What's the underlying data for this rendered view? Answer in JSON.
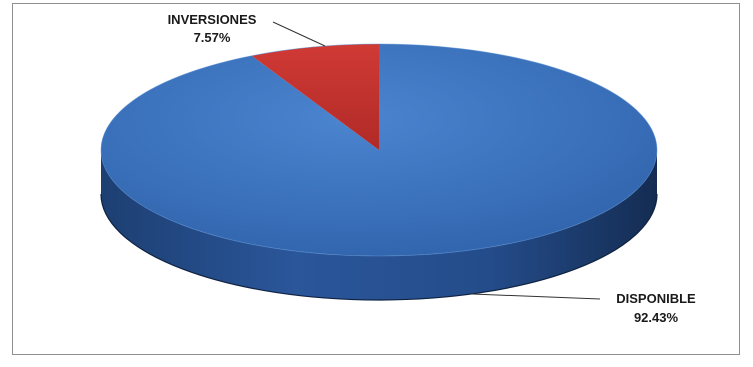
{
  "chart_data": {
    "type": "pie",
    "style": "3d",
    "slices": [
      {
        "label": "DISPONIBLE",
        "value": 92.43,
        "value_label": "92.43%",
        "color": "#3a72bd"
      },
      {
        "label": "INVERSIONES",
        "value": 7.57,
        "value_label": "7.57%",
        "color": "#c0302d"
      }
    ]
  }
}
